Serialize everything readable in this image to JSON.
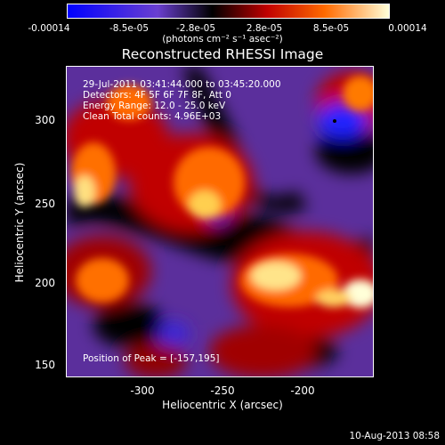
{
  "colorbar": {
    "tick_labels": [
      "-0.00014",
      "-8.5e-05",
      "-2.8e-05",
      "2.8e-05",
      "8.5e-05",
      "0.00014"
    ],
    "units": "(photons cm⁻² s⁻¹ asec⁻²)",
    "colors": [
      "#0000ff",
      "#6a3fd0",
      "#000000",
      "#c00000",
      "#ff6a00",
      "#ffffd8"
    ]
  },
  "plot": {
    "title": "Reconstructed RHESSI Image",
    "info": {
      "time": "29-Jul-2011 03:41:44.000 to 03:45:20.000",
      "detectors": "Detectors: 4F 5F 6F 7F 8F, Att 0",
      "energy": "Energy Range: 12.0 - 25.0 keV",
      "clean": "Clean    Total counts: 4.96E+03"
    },
    "peak": "Position of Peak = [-157,195]",
    "xaxis": {
      "label": "Heliocentric X (arcsec)",
      "ticks": [
        "-300",
        "-250",
        "-200"
      ],
      "range": [
        -343,
        -150
      ]
    },
    "yaxis": {
      "label": "Heliocentric Y (arcsec)",
      "ticks": [
        "300",
        "250",
        "200",
        "150"
      ],
      "range": [
        142,
        338
      ]
    }
  },
  "footer": {
    "date": "10-Aug-2013 08:58"
  }
}
